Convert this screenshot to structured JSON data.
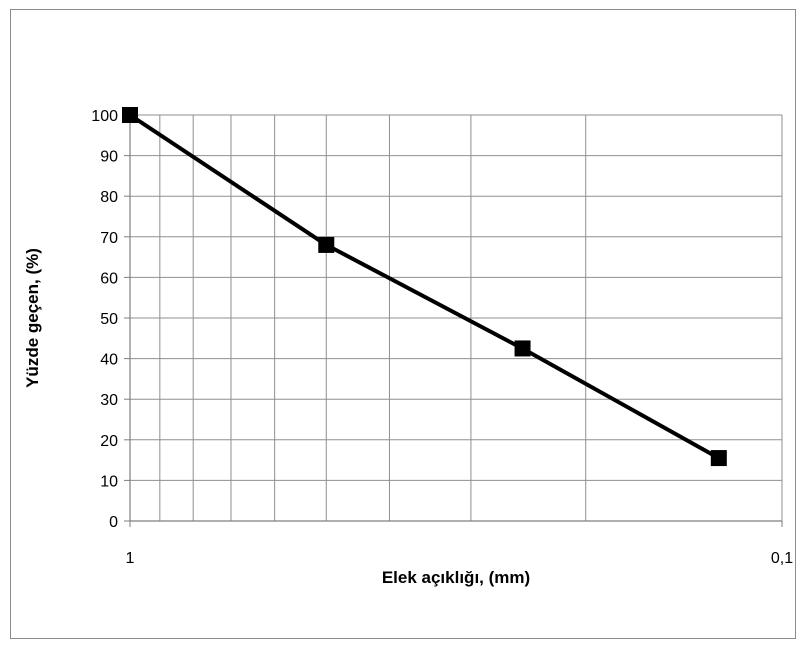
{
  "chart_data": {
    "type": "line",
    "title": "",
    "xlabel": "Elek açıklığı, (mm)",
    "ylabel": "Yüzde geçen, (%)",
    "x_scale": "log",
    "x_reversed": true,
    "xlim": [
      1,
      0.1
    ],
    "ylim": [
      0,
      100
    ],
    "x_ticks": [
      1,
      0.1
    ],
    "x_tick_labels": [
      "1",
      "0,1"
    ],
    "x_minor_gridlines": [
      0.9,
      0.8,
      0.7,
      0.6,
      0.5,
      0.4,
      0.3,
      0.2
    ],
    "y_ticks": [
      0,
      10,
      20,
      30,
      40,
      50,
      60,
      70,
      80,
      90,
      100
    ],
    "y_tick_labels": [
      "0",
      "10",
      "20",
      "30",
      "40",
      "50",
      "60",
      "70",
      "80",
      "90",
      "100"
    ],
    "grid": true,
    "legend": "none",
    "line_color": "#000000",
    "marker": "square",
    "series": [
      {
        "x": [
          1,
          0.5,
          0.25,
          0.125
        ],
        "y": [
          100,
          68,
          42.5,
          15.5
        ]
      }
    ]
  }
}
